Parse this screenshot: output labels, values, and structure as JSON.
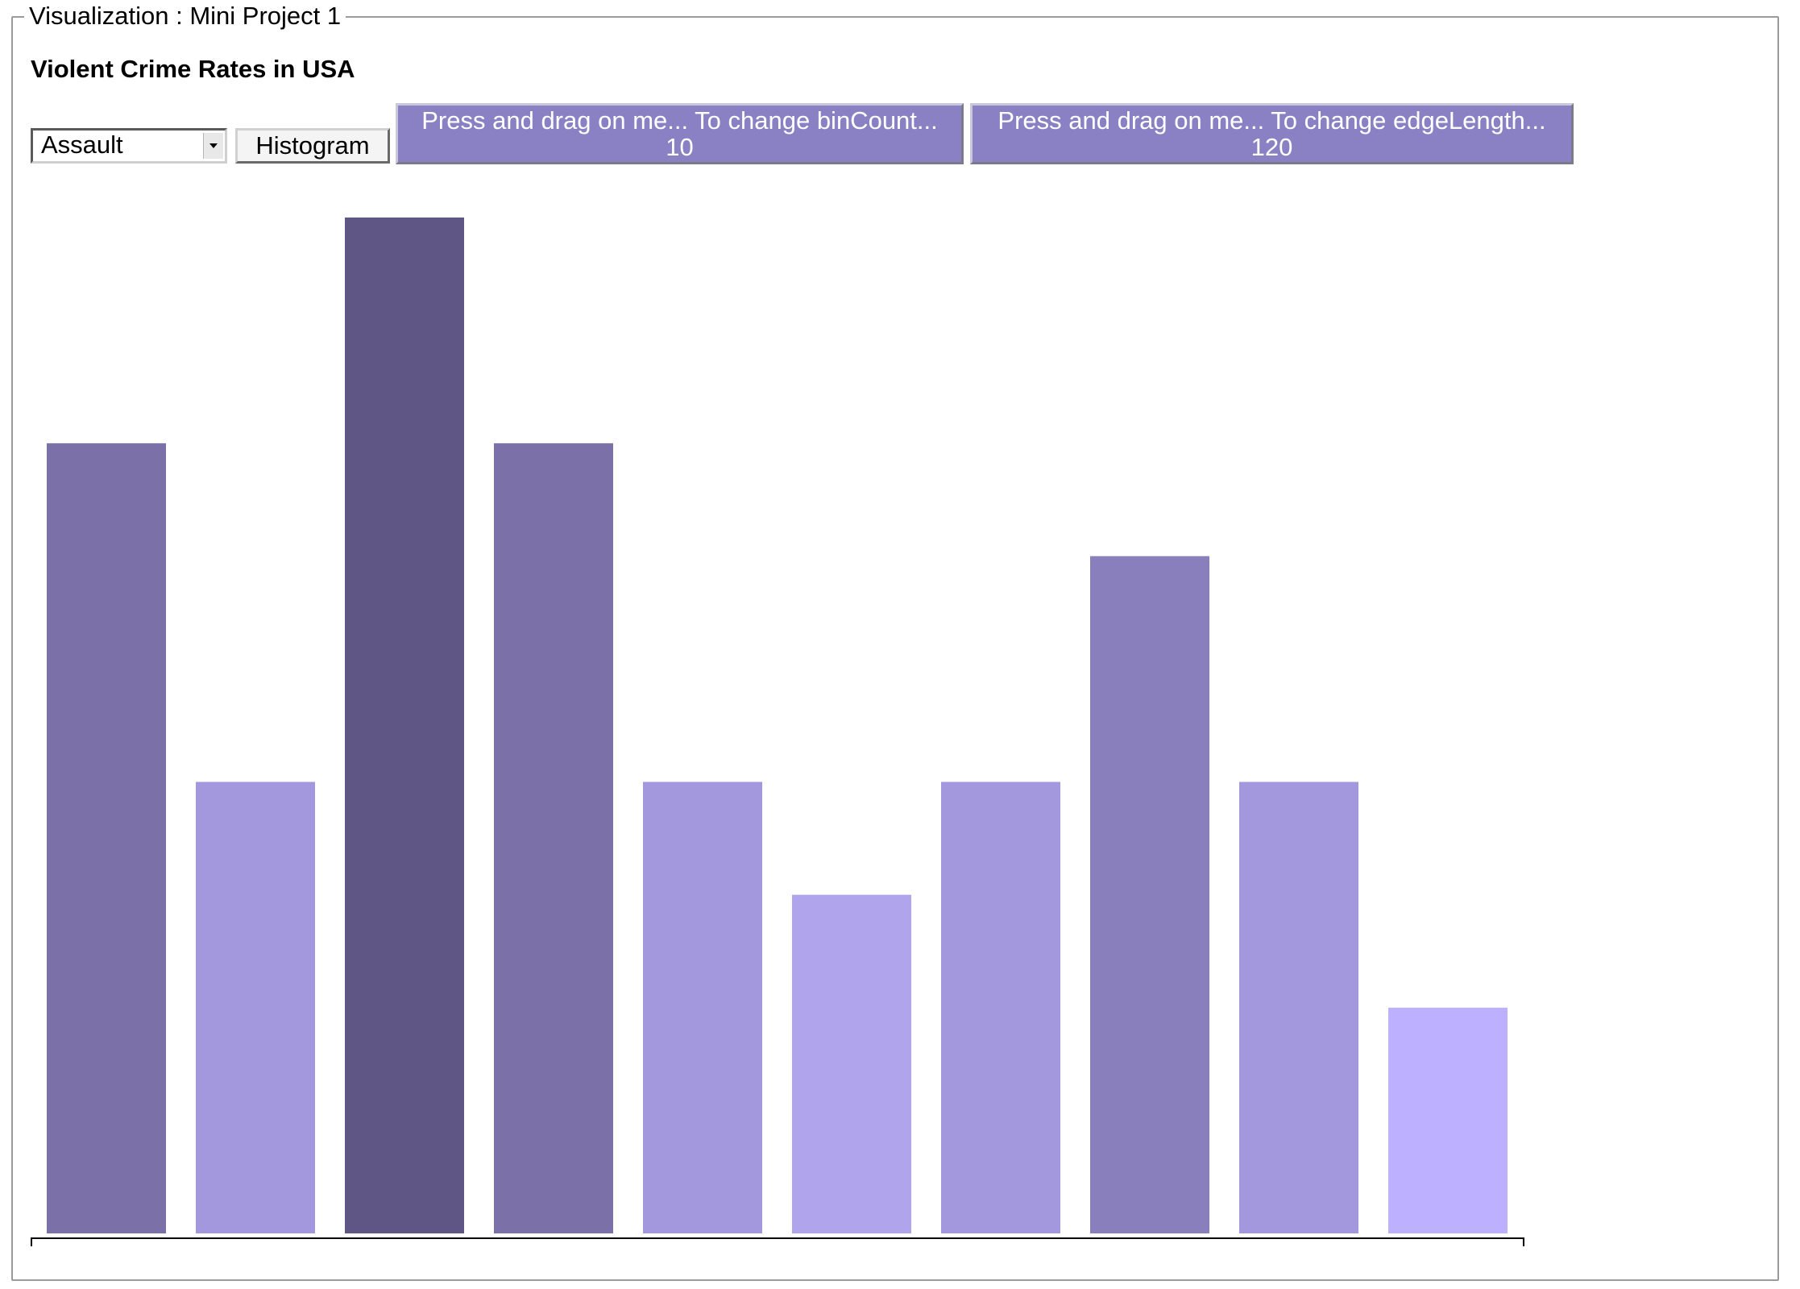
{
  "fieldset": {
    "legend": "Visualization : Mini Project 1"
  },
  "header": {
    "title": "Violent Crime Rates in USA"
  },
  "controls": {
    "select_value": "Assault",
    "histogram_label": "Histogram",
    "bin_drag": {
      "label": "Press and drag on me... To change binCount...",
      "value": "10"
    },
    "edge_drag": {
      "label": "Press and drag on me... To change edgeLength...",
      "value": "120"
    }
  },
  "chart_data": {
    "type": "bar",
    "title": "Violent Crime Rates in USA",
    "xlabel": "",
    "ylabel": "",
    "values": [
      7,
      4,
      9,
      7,
      4,
      3,
      4,
      6,
      4,
      2
    ],
    "ylim": [
      0,
      9
    ],
    "grid": false,
    "legend": "none",
    "colors": [
      "#7b70a8",
      "#a397dd",
      "#5f5686",
      "#7b70a8",
      "#a397dd",
      "#b0a4ec",
      "#a397dd",
      "#897fbc",
      "#a397dd",
      "#bdb0fe"
    ]
  }
}
